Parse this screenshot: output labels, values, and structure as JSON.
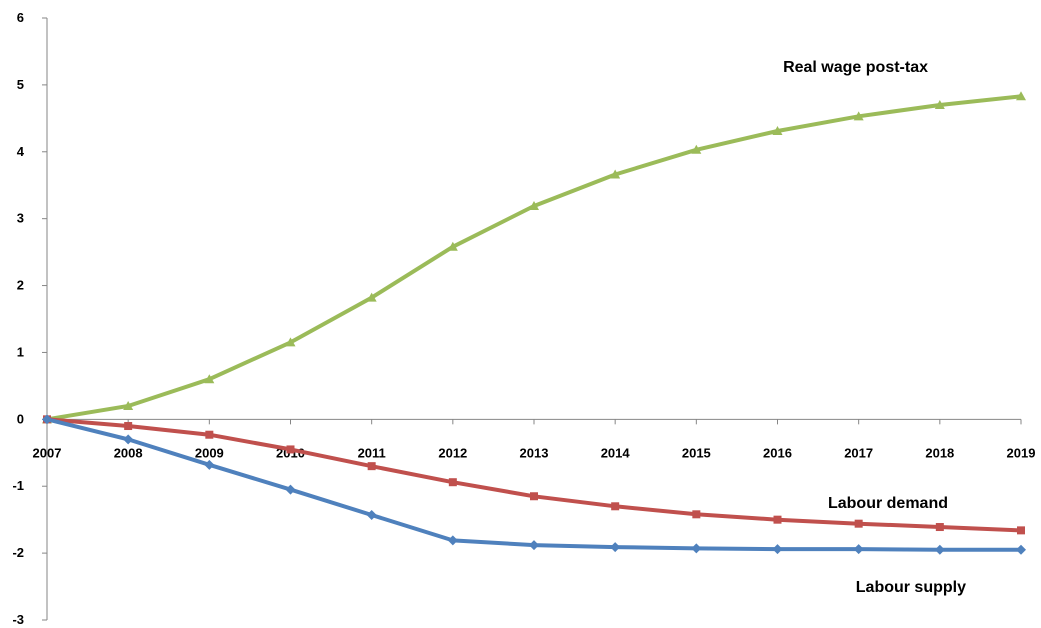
{
  "chart_data": {
    "type": "line",
    "title": "",
    "xlabel": "",
    "ylabel": "",
    "grid": false,
    "legend": "none",
    "x": [
      "2007",
      "2008",
      "2009",
      "2010",
      "2011",
      "2012",
      "2013",
      "2014",
      "2015",
      "2016",
      "2017",
      "2018",
      "2019"
    ],
    "ylim": [
      -3,
      6
    ],
    "yticks": [
      "-3",
      "-2",
      "-1",
      "0",
      "1",
      "2",
      "3",
      "4",
      "5",
      "6"
    ],
    "series": [
      {
        "name": "Real wage post-tax",
        "color": "#9BBB59",
        "marker": "triangle",
        "values": [
          0,
          0.2,
          0.6,
          1.15,
          1.82,
          2.58,
          3.19,
          3.66,
          4.03,
          4.31,
          4.53,
          4.7,
          4.83
        ]
      },
      {
        "name": "Labour demand",
        "color": "#C0504D",
        "marker": "square",
        "values": [
          0,
          -0.1,
          -0.23,
          -0.45,
          -0.7,
          -0.94,
          -1.15,
          -1.3,
          -1.42,
          -1.5,
          -1.56,
          -1.61,
          -1.66
        ]
      },
      {
        "name": "Labour supply",
        "color": "#4F81BD",
        "marker": "diamond",
        "values": [
          0,
          -0.3,
          -0.68,
          -1.05,
          -1.43,
          -1.81,
          -1.88,
          -1.91,
          -1.93,
          -1.94,
          -1.94,
          -1.95,
          -1.95
        ]
      }
    ]
  }
}
